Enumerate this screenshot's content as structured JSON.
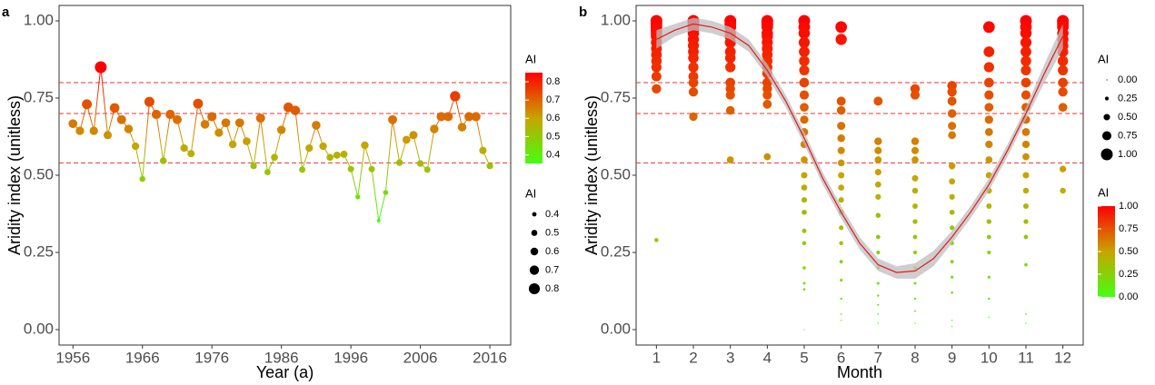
{
  "chart_data": [
    {
      "type": "line",
      "label": "a",
      "x_label": "Year (a)",
      "y_label": "Aridity index (unitless)",
      "x": [
        1956,
        1957,
        1958,
        1959,
        1960,
        1961,
        1962,
        1963,
        1964,
        1965,
        1966,
        1967,
        1968,
        1969,
        1970,
        1971,
        1972,
        1973,
        1974,
        1975,
        1976,
        1977,
        1978,
        1979,
        1980,
        1981,
        1982,
        1983,
        1984,
        1985,
        1986,
        1987,
        1988,
        1989,
        1990,
        1991,
        1992,
        1993,
        1994,
        1995,
        1996,
        1997,
        1998,
        1999,
        2000,
        2001,
        2002,
        2003,
        2004,
        2005,
        2006,
        2007,
        2008,
        2009,
        2010,
        2011,
        2012,
        2013,
        2014,
        2015,
        2016
      ],
      "values": [
        0.667,
        0.644,
        0.73,
        0.644,
        0.85,
        0.63,
        0.718,
        0.68,
        0.65,
        0.594,
        0.488,
        0.738,
        0.697,
        0.547,
        0.697,
        0.68,
        0.588,
        0.57,
        0.732,
        0.665,
        0.69,
        0.638,
        0.67,
        0.6,
        0.67,
        0.61,
        0.53,
        0.685,
        0.51,
        0.558,
        0.647,
        0.72,
        0.71,
        0.518,
        0.588,
        0.662,
        0.594,
        0.558,
        0.565,
        0.568,
        0.52,
        0.43,
        0.597,
        0.52,
        0.353,
        0.444,
        0.68,
        0.541,
        0.615,
        0.63,
        0.538,
        0.518,
        0.65,
        0.69,
        0.69,
        0.756,
        0.656,
        0.69,
        0.69,
        0.58,
        0.53
      ],
      "xlim": [
        1954,
        2019
      ],
      "xticks": [
        1956,
        1966,
        1976,
        1986,
        1996,
        2006,
        2016
      ],
      "ylim": [
        -0.05,
        1.05
      ],
      "yticks": [
        {
          "value": 0,
          "label": "0.00"
        },
        {
          "value": 0.25,
          "label": "0.25"
        },
        {
          "value": 0.5,
          "label": "0.50"
        },
        {
          "value": 0.75,
          "label": "0.75"
        },
        {
          "value": 1,
          "label": "1.00"
        }
      ],
      "hlines": [
        0.8,
        0.7,
        0.54
      ],
      "hline_color": "#e8342f",
      "color_scale": [
        "#44ff11",
        "#c8a400",
        "#ff0000"
      ],
      "color_lim": [
        0.353,
        0.85
      ],
      "line_color_by_value": true,
      "color_legend": {
        "title": "AI",
        "ticks": [
          0.4,
          0.5,
          0.6,
          0.7,
          0.8
        ]
      },
      "size_legend": {
        "title": "AI",
        "ticks": [
          0.4,
          0.5,
          0.6,
          0.7,
          0.8
        ]
      }
    },
    {
      "type": "scatter",
      "label": "b",
      "x_label": "Month",
      "y_label": "Aridity index (unitless)",
      "points": [
        {
          "month": 1,
          "values": [
            1.0,
            0.99,
            0.98,
            0.97,
            0.96,
            0.95,
            0.93,
            0.91,
            0.89,
            0.87,
            0.85,
            0.82,
            0.78,
            0.29
          ]
        },
        {
          "month": 2,
          "values": [
            1.0,
            0.99,
            0.98,
            0.97,
            0.96,
            0.94,
            0.92,
            0.9,
            0.88,
            0.85,
            0.82,
            0.8,
            0.77,
            0.69
          ]
        },
        {
          "month": 3,
          "values": [
            1.0,
            0.99,
            0.98,
            0.96,
            0.95,
            0.93,
            0.9,
            0.88,
            0.85,
            0.8,
            0.78,
            0.76,
            0.71,
            0.55
          ]
        },
        {
          "month": 4,
          "values": [
            1.0,
            0.99,
            0.98,
            0.96,
            0.95,
            0.93,
            0.91,
            0.89,
            0.87,
            0.85,
            0.83,
            0.8,
            0.78,
            0.76,
            0.73,
            0.56
          ]
        },
        {
          "month": 5,
          "values": [
            1.0,
            0.98,
            0.96,
            0.93,
            0.9,
            0.87,
            0.84,
            0.8,
            0.76,
            0.72,
            0.68,
            0.64,
            0.6,
            0.55,
            0.5,
            0.46,
            0.42,
            0.38,
            0.32,
            0.28,
            0.2,
            0.15,
            0.13,
            0.0
          ]
        },
        {
          "month": 6,
          "values": [
            0.98,
            0.94,
            0.74,
            0.71,
            0.66,
            0.62,
            0.58,
            0.54,
            0.5,
            0.46,
            0.42,
            0.38,
            0.33,
            0.28,
            0.22,
            0.16,
            0.1,
            0.05,
            0.03
          ]
        },
        {
          "month": 7,
          "values": [
            0.74,
            0.61,
            0.58,
            0.55,
            0.51,
            0.47,
            0.43,
            0.37,
            0.3,
            0.25,
            0.2,
            0.15,
            0.11,
            0.08,
            0.05,
            0.02
          ]
        },
        {
          "month": 8,
          "values": [
            0.78,
            0.76,
            0.61,
            0.58,
            0.55,
            0.49,
            0.45,
            0.4,
            0.35,
            0.3,
            0.25,
            0.2,
            0.15,
            0.1,
            0.06,
            0.02
          ]
        },
        {
          "month": 9,
          "values": [
            0.79,
            0.77,
            0.74,
            0.7,
            0.66,
            0.63,
            0.53,
            0.48,
            0.43,
            0.38,
            0.33,
            0.28,
            0.22,
            0.17,
            0.12,
            0.03,
            0.01
          ]
        },
        {
          "month": 10,
          "values": [
            0.98,
            0.9,
            0.85,
            0.8,
            0.76,
            0.72,
            0.68,
            0.64,
            0.6,
            0.55,
            0.5,
            0.45,
            0.4,
            0.35,
            0.3,
            0.25,
            0.17,
            0.1,
            0.04
          ]
        },
        {
          "month": 11,
          "values": [
            1.0,
            0.98,
            0.96,
            0.93,
            0.9,
            0.87,
            0.84,
            0.8,
            0.76,
            0.72,
            0.68,
            0.64,
            0.6,
            0.56,
            0.5,
            0.45,
            0.4,
            0.35,
            0.3,
            0.21,
            0.05,
            0.02
          ]
        },
        {
          "month": 12,
          "values": [
            1.0,
            0.99,
            0.98,
            0.96,
            0.94,
            0.92,
            0.9,
            0.87,
            0.84,
            0.8,
            0.77,
            0.72,
            0.52,
            0.45
          ]
        }
      ],
      "smooth": {
        "color": "#e41a1c",
        "band_color": "#bdbdbd",
        "x": [
          1,
          1.5,
          2,
          2.5,
          3,
          3.5,
          4,
          4.5,
          5,
          5.5,
          6,
          6.5,
          7,
          7.5,
          8,
          8.5,
          9,
          9.5,
          10,
          10.5,
          11,
          11.5,
          12
        ],
        "values": [
          0.94,
          0.97,
          0.99,
          0.98,
          0.96,
          0.92,
          0.84,
          0.74,
          0.62,
          0.49,
          0.38,
          0.28,
          0.21,
          0.185,
          0.19,
          0.23,
          0.3,
          0.38,
          0.47,
          0.58,
          0.7,
          0.83,
          0.95
        ],
        "lower": [
          0.91,
          0.95,
          0.97,
          0.96,
          0.94,
          0.9,
          0.82,
          0.72,
          0.6,
          0.47,
          0.36,
          0.26,
          0.19,
          0.165,
          0.165,
          0.205,
          0.28,
          0.36,
          0.45,
          0.56,
          0.68,
          0.8,
          0.91
        ],
        "upper": [
          0.97,
          0.99,
          1.01,
          1.0,
          0.98,
          0.94,
          0.86,
          0.76,
          0.64,
          0.51,
          0.4,
          0.3,
          0.23,
          0.205,
          0.215,
          0.255,
          0.32,
          0.4,
          0.49,
          0.6,
          0.72,
          0.86,
          0.99
        ]
      },
      "xlim": [
        0.45,
        12.55
      ],
      "xticks": [
        1,
        2,
        3,
        4,
        5,
        6,
        7,
        8,
        9,
        10,
        11,
        12
      ],
      "ylim": [
        -0.05,
        1.05
      ],
      "yticks": [
        {
          "value": 0,
          "label": "0.00"
        },
        {
          "value": 0.25,
          "label": "0.25"
        },
        {
          "value": 0.5,
          "label": "0.50"
        },
        {
          "value": 0.75,
          "label": "0.75"
        },
        {
          "value": 1,
          "label": "1.00"
        }
      ],
      "hlines": [
        0.8,
        0.7,
        0.54
      ],
      "hline_color": "#e8342f",
      "color_scale": [
        "#44ff11",
        "#c8a400",
        "#ff0000"
      ],
      "color_lim": [
        0,
        1
      ],
      "size_legend": {
        "title": "AI",
        "ticks": [
          {
            "value": 0,
            "label": "0.00"
          },
          {
            "value": 0.25,
            "label": "0.25"
          },
          {
            "value": 0.5,
            "label": "0.50"
          },
          {
            "value": 0.75,
            "label": "0.75"
          },
          {
            "value": 1,
            "label": "1.00"
          }
        ]
      },
      "color_legend": {
        "title": "AI",
        "ticks": [
          {
            "value": 0,
            "label": "0.00"
          },
          {
            "value": 0.25,
            "label": "0.25"
          },
          {
            "value": 0.5,
            "label": "0.50"
          },
          {
            "value": 0.75,
            "label": "0.75"
          },
          {
            "value": 1,
            "label": "1.00"
          }
        ]
      }
    }
  ]
}
